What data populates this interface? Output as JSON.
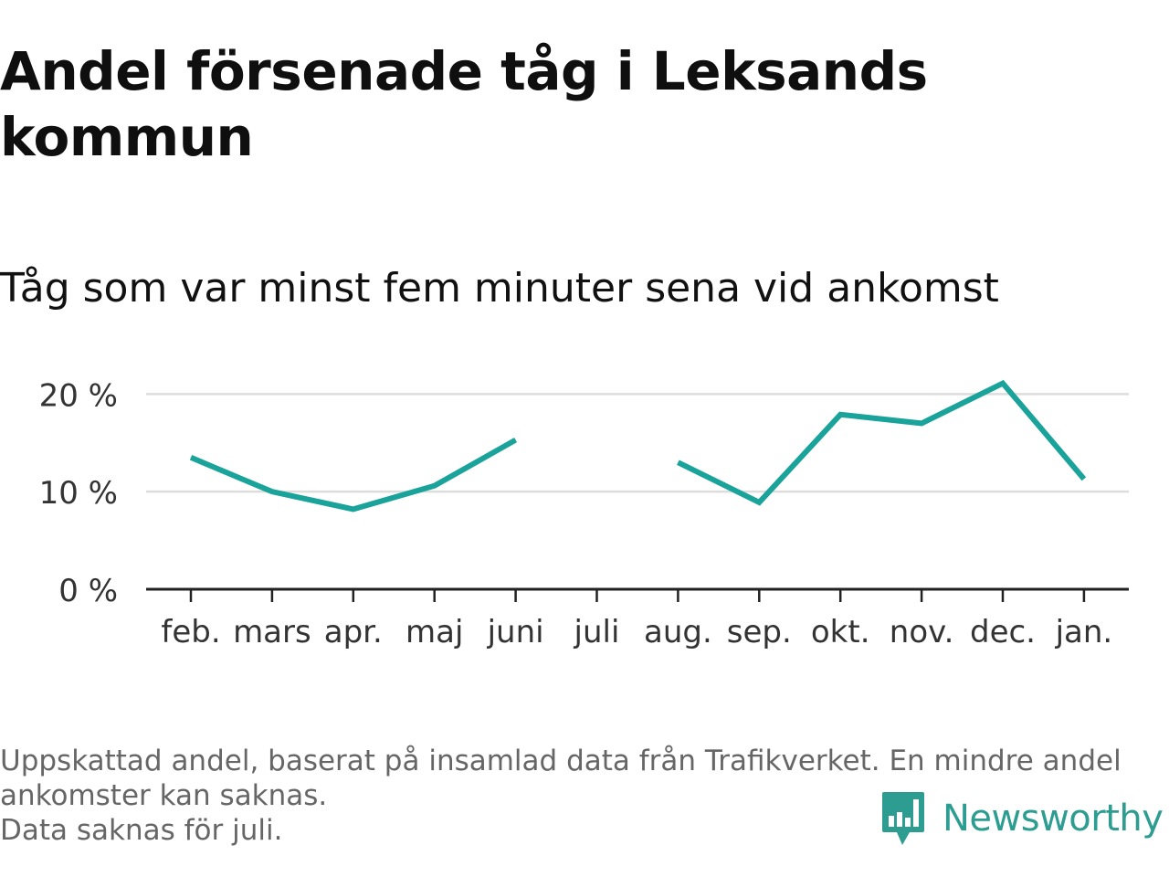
{
  "title": "Andel försenade tåg i Leksands kommun",
  "subtitle": "Tåg som var minst fem minuter sena vid ankomst",
  "footnote": {
    "line1": "Uppskattad andel, baserat på insamlad data från Trafikverket. En mindre andel ankomster kan saknas.",
    "line2": "Data saknas för juli."
  },
  "logo": {
    "text": "Newsworthy",
    "icon": "newsworthy-bar-chart-icon",
    "color": "#2c9d90"
  },
  "chart_data": {
    "type": "line",
    "categories": [
      "feb.",
      "mars",
      "apr.",
      "maj",
      "juni",
      "juli",
      "aug.",
      "sep.",
      "okt.",
      "nov.",
      "dec.",
      "jan."
    ],
    "series": [
      {
        "values": [
          13.5,
          10.0,
          8.2,
          10.6,
          15.3,
          null,
          13.0,
          8.9,
          17.9,
          17.0,
          21.1,
          11.3
        ],
        "color": "#1aa39a"
      }
    ],
    "yticks": [
      0,
      10,
      20
    ],
    "ytick_labels": [
      "0 %",
      "10 %",
      "20 %"
    ],
    "ylim": [
      0,
      22
    ],
    "grid": true,
    "legend": "none",
    "xlabel": "",
    "ylabel": ""
  }
}
